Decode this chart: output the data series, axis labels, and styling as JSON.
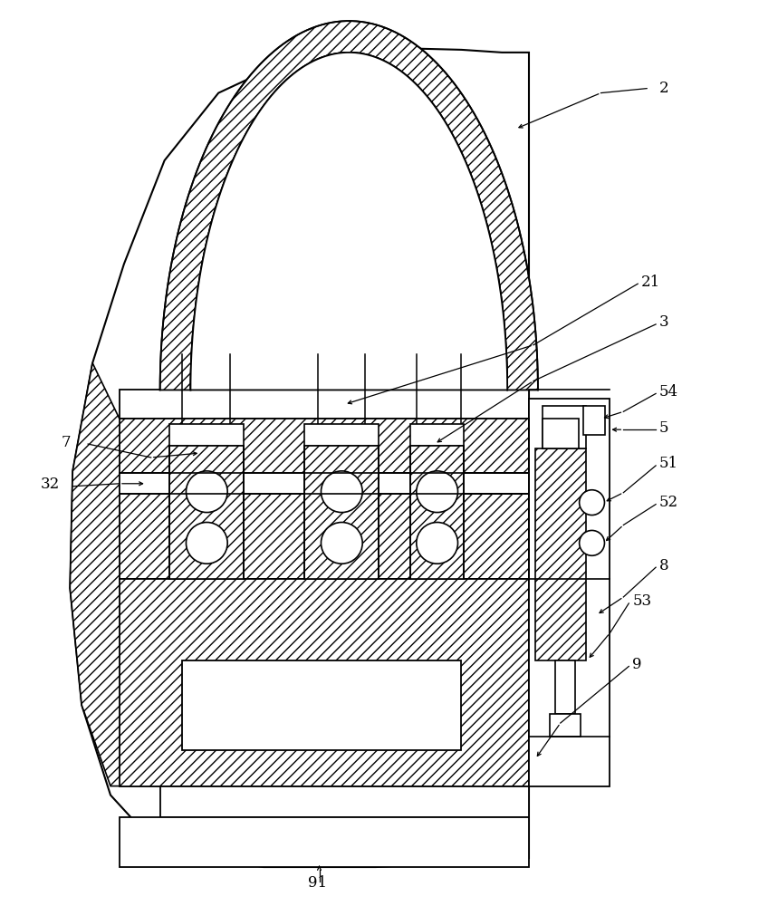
{
  "bg_color": "#ffffff",
  "line_color": "#000000",
  "fig_width": 8.59,
  "fig_height": 10.0
}
